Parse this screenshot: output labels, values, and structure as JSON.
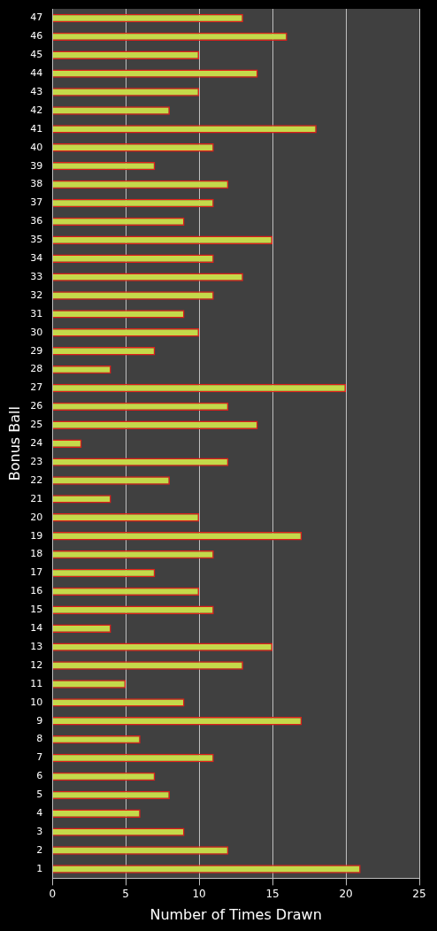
{
  "chart_data": {
    "type": "bar",
    "orientation": "horizontal",
    "x_label": "Number of Times Drawn",
    "y_label": "Bonus Ball",
    "categories": [
      "1",
      "2",
      "3",
      "4",
      "5",
      "6",
      "7",
      "8",
      "9",
      "10",
      "11",
      "12",
      "13",
      "14",
      "15",
      "16",
      "17",
      "18",
      "19",
      "20",
      "21",
      "22",
      "23",
      "24",
      "25",
      "26",
      "27",
      "28",
      "29",
      "30",
      "31",
      "32",
      "33",
      "34",
      "35",
      "36",
      "37",
      "38",
      "39",
      "40",
      "41",
      "42",
      "43",
      "44",
      "45",
      "46",
      "47"
    ],
    "values": [
      21,
      12,
      9,
      6,
      8,
      7,
      11,
      6,
      17,
      9,
      5,
      13,
      15,
      4,
      11,
      10,
      7,
      11,
      17,
      10,
      4,
      8,
      12,
      2,
      14,
      12,
      20,
      4,
      7,
      10,
      9,
      11,
      13,
      11,
      15,
      9,
      11,
      12,
      7,
      11,
      18,
      8,
      10,
      14,
      10,
      16,
      13
    ],
    "color": "#c5d94a",
    "xlim": [
      0,
      25
    ],
    "xticks": [
      0,
      5,
      10,
      15,
      20,
      25
    ],
    "grid": true
  }
}
